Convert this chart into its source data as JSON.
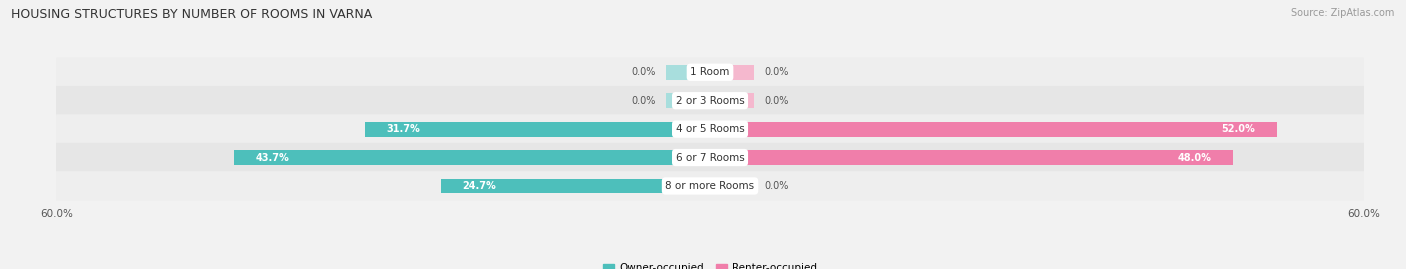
{
  "title": "HOUSING STRUCTURES BY NUMBER OF ROOMS IN VARNA",
  "source": "Source: ZipAtlas.com",
  "categories": [
    "1 Room",
    "2 or 3 Rooms",
    "4 or 5 Rooms",
    "6 or 7 Rooms",
    "8 or more Rooms"
  ],
  "owner_values": [
    0.0,
    0.0,
    31.7,
    43.7,
    24.7
  ],
  "renter_values": [
    0.0,
    0.0,
    52.0,
    48.0,
    0.0
  ],
  "owner_color": "#4dbfbb",
  "renter_color": "#f07eaa",
  "owner_color_light": "#a8dedd",
  "renter_color_light": "#f5b8ce",
  "owner_label": "Owner-occupied",
  "renter_label": "Renter-occupied",
  "axis_max": 60.0,
  "x_tick_label_left": "60.0%",
  "x_tick_label_right": "60.0%",
  "background_color": "#f2f2f2",
  "row_bg_light": "#eeeeee",
  "row_bg_dark": "#e6e6e6",
  "label_bg_color": "#ffffff",
  "title_fontsize": 9,
  "source_fontsize": 7,
  "bar_height": 0.52,
  "stub_value": 4.0,
  "value_label_threshold": 5.0
}
